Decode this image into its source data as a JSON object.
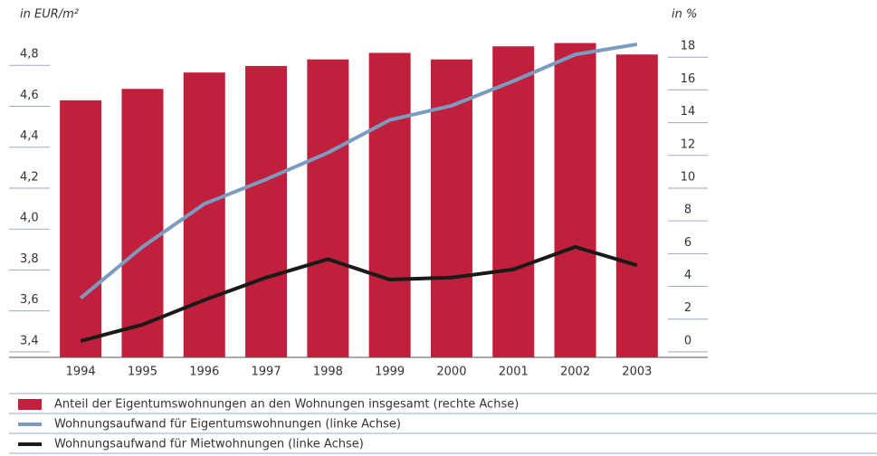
{
  "chart_data": {
    "type": "bar-line",
    "ylabel": "in EUR/m²",
    "y2label": "in %",
    "categories": [
      "1994",
      "1995",
      "1996",
      "1997",
      "1998",
      "1999",
      "2000",
      "2001",
      "2002",
      "2003"
    ],
    "ylim": [
      3.32,
      5.0
    ],
    "yticks": [
      {
        "value": 3.4,
        "label": "3,4"
      },
      {
        "value": 3.6,
        "label": "3,6"
      },
      {
        "value": 3.8,
        "label": "3,8"
      },
      {
        "value": 4.0,
        "label": "4,0"
      },
      {
        "value": 4.2,
        "label": "4,2"
      },
      {
        "value": 4.4,
        "label": "4,4"
      },
      {
        "value": 4.6,
        "label": "4,6"
      },
      {
        "value": 4.8,
        "label": "4,8"
      }
    ],
    "y2lim": [
      -1,
      20
    ],
    "y2ticks": [
      0,
      2,
      4,
      6,
      8,
      10,
      12,
      14,
      16,
      18
    ],
    "series": [
      {
        "name": "Anteil der Eigentumswohnungen an den Wohnungen insgesamt (rechte Achse)",
        "type": "bar",
        "axis": "y2",
        "color": "#c0203c",
        "values": [
          14.7,
          15.4,
          16.4,
          16.8,
          17.2,
          17.6,
          17.2,
          18.0,
          18.2,
          17.5
        ]
      },
      {
        "name": "Wohnungsaufwand für Eigentumswohnungen (linke Achse)",
        "type": "line",
        "color": "#7b9cc0",
        "values": [
          3.61,
          3.86,
          4.07,
          4.19,
          4.32,
          4.48,
          4.55,
          4.67,
          4.8,
          4.85
        ]
      },
      {
        "name": "Wohnungsaufwand für Mietwohnungen (linke Achse)",
        "type": "line",
        "color": "#1a1a1a",
        "values": [
          3.4,
          3.48,
          3.6,
          3.71,
          3.8,
          3.7,
          3.71,
          3.75,
          3.86,
          3.77
        ]
      }
    ]
  }
}
